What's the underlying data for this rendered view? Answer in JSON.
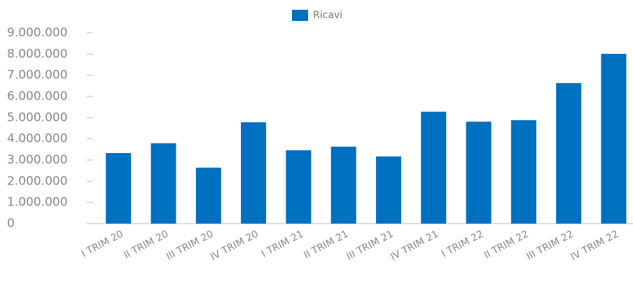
{
  "chart_data": {
    "type": "bar",
    "categories": [
      "I TRIM 20",
      "II TRIM 20",
      "III TRIM 20",
      "IV TRIM 20",
      "I TRIM 21",
      "II TRIM 21",
      "III TRIM 21",
      "IV TRIM 21",
      "I TRIM 22",
      "II TRIM 22",
      "III TRIM 22",
      "IV TRIM 22"
    ],
    "series": [
      {
        "name": "Ricavi",
        "color": "#0070c0",
        "values": [
          3330000,
          3790000,
          2640000,
          4780000,
          3460000,
          3630000,
          3170000,
          5280000,
          4810000,
          4880000,
          6630000,
          8010000
        ]
      }
    ],
    "ylim": [
      0,
      9000000
    ],
    "yticks": [
      0,
      {
        "value": 1000000,
        "label": "1.000.000"
      },
      {
        "value": 2000000,
        "label": "2.000.000"
      },
      {
        "value": 3000000,
        "label": "3.000.000"
      },
      {
        "value": 4000000,
        "label": "4.000.000"
      },
      {
        "value": 5000000,
        "label": "5.000.000"
      },
      {
        "value": 6000000,
        "label": "6.000.000"
      },
      {
        "value": 7000000,
        "label": "7.000.000"
      },
      {
        "value": 8000000,
        "label": "8.000.000"
      },
      {
        "value": 9000000,
        "label": "9.000.000"
      }
    ],
    "legend": "top"
  }
}
